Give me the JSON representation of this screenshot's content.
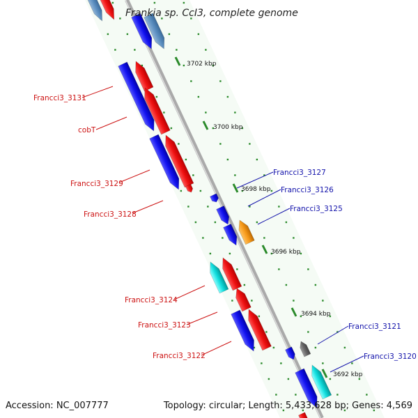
{
  "title": "Frankia sp. CcI3, complete genome",
  "footer": {
    "accession": "Accession: NC_007777",
    "summary": "Topology: circular; Length: 5,433,628 bp; Genes: 4,569"
  },
  "colors": {
    "forward_gene": "#ee1111",
    "reverse_gene": "#1111ee",
    "cyan_gene": "#11dddd",
    "orange_gene": "#f79a1a",
    "gray_gene": "#666666",
    "label_left": "#cc1111",
    "label_right": "#1111aa",
    "backbone": "#999999",
    "tick_dots": "#2a8a2a",
    "band": "#e4f4e4"
  },
  "scale_ticks": [
    {
      "label": "3702 kbp"
    },
    {
      "label": "3700 kbp"
    },
    {
      "label": "3698 kbp"
    },
    {
      "label": "3696 kbp"
    },
    {
      "label": "3694 kbp"
    },
    {
      "label": "3692 kbp"
    }
  ],
  "gene_labels_left": [
    {
      "label": "Francci3_3131"
    },
    {
      "label": "cobT"
    },
    {
      "label": "Francci3_3129"
    },
    {
      "label": "Francci3_3128"
    },
    {
      "label": "Francci3_3124"
    },
    {
      "label": "Francci3_3123"
    },
    {
      "label": "Francci3_3122"
    }
  ],
  "gene_labels_right": [
    {
      "label": "Francci3_3127"
    },
    {
      "label": "Francci3_3126"
    },
    {
      "label": "Francci3_3125"
    },
    {
      "label": "Francci3_3121"
    },
    {
      "label": "Francci3_3120"
    }
  ]
}
